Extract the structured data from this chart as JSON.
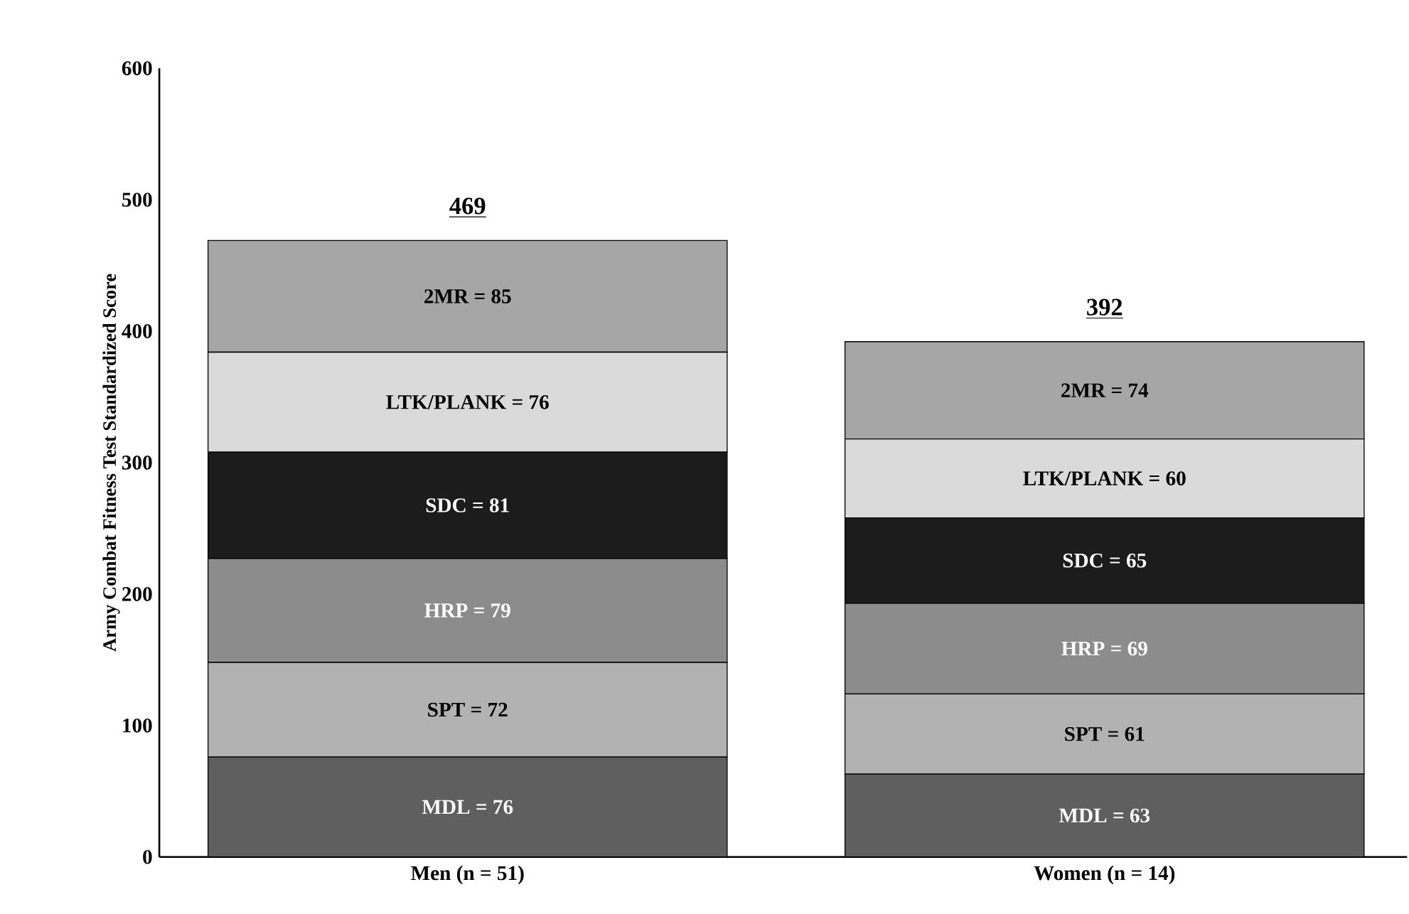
{
  "chart_data": {
    "type": "bar",
    "stacked": true,
    "ylabel": "Army Combat Fitness Test Standardized Score",
    "categories": [
      "Men (n = 51)",
      "Women (n = 14)"
    ],
    "ylim": [
      0,
      600
    ],
    "yticks": [
      0,
      100,
      200,
      300,
      400,
      500,
      600
    ],
    "grid": false,
    "series": [
      {
        "color": "#5f5f5f",
        "values": [
          76,
          63
        ],
        "value_labels": [
          "MDL =  76",
          "MDL =  63"
        ]
      },
      {
        "color": "#b2b2b2",
        "values": [
          72,
          61
        ],
        "value_labels": [
          "SPT = 72",
          "SPT = 61"
        ]
      },
      {
        "color": "#8c8c8c",
        "values": [
          79,
          69
        ],
        "value_labels": [
          "HRP = 79",
          "HRP = 69"
        ]
      },
      {
        "color": "#1c1c1c",
        "values": [
          81,
          65
        ],
        "value_labels": [
          "SDC =  81",
          "SDC = 65"
        ]
      },
      {
        "color": "#dadada",
        "values": [
          76,
          60
        ],
        "value_labels": [
          "LTK/PLANK = 76",
          "LTK/PLANK = 60"
        ]
      },
      {
        "color": "#a6a6a6",
        "values": [
          85,
          74
        ],
        "value_labels": [
          "2MR = 85",
          "2MR = 74"
        ]
      }
    ],
    "totals": [
      "469",
      "392"
    ]
  }
}
